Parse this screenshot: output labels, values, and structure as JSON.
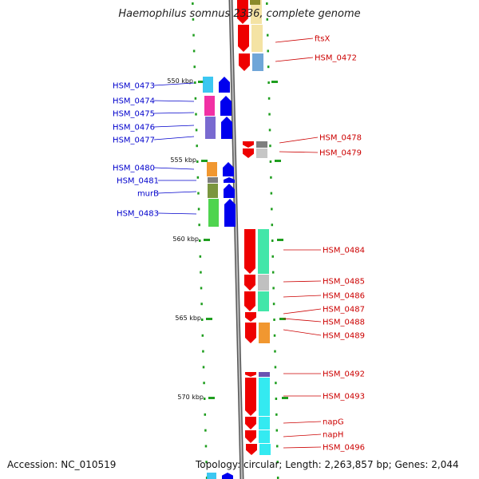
{
  "title": "Haemophilus somnus 2336, complete genome",
  "accession": "Accession: NC_010519",
  "summary": "Topology: circular; Length: 2,263,857 bp; Genes: 2,044",
  "colors": {
    "left_label": "#0000cc",
    "right_label": "#cc0000",
    "axis": "#888888",
    "ticks": "#1f9e1f",
    "strand_plus": "#0000ee",
    "strand_minus": "#ee0000"
  },
  "scale_labels": [
    "550 kbp",
    "555 kbp",
    "560 kbp",
    "565 kbp",
    "570 kbp"
  ],
  "left_genes": [
    "HSM_0473",
    "HSM_0474",
    "HSM_0475",
    "HSM_0476",
    "HSM_0477",
    "HSM_0480",
    "HSM_0481",
    "murB",
    "HSM_0483"
  ],
  "right_genes": [
    "ftsX",
    "HSM_0472",
    "HSM_0478",
    "HSM_0479",
    "HSM_0484",
    "HSM_0485",
    "HSM_0486",
    "HSM_0487",
    "HSM_0488",
    "HSM_0489",
    "HSM_0492",
    "HSM_0493",
    "napG",
    "napH",
    "HSM_0496"
  ]
}
